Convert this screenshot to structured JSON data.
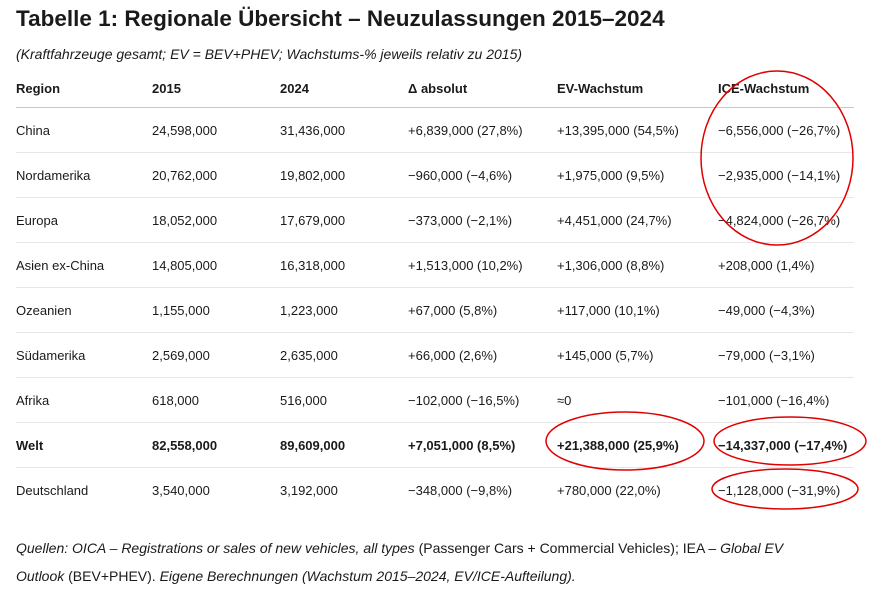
{
  "title": "Tabelle 1: Regionale Übersicht – Neuzulassungen 2015–2024",
  "subtitle": "(Kraftfahrzeuge gesamt; EV = BEV+PHEV; Wachstums-% jeweils relativ zu 2015)",
  "table": {
    "headers": [
      "Region",
      "2015",
      "2024",
      "Δ absolut",
      "EV-Wachstum",
      "ICE-Wachstum"
    ],
    "rows": [
      [
        "China",
        "24,598,000",
        "31,436,000",
        "+6,839,000 (27,8%)",
        "+13,395,000 (54,5%)",
        "−6,556,000 (−26,7%)"
      ],
      [
        "Nordamerika",
        "20,762,000",
        "19,802,000",
        "−960,000 (−4,6%)",
        "+1,975,000 (9,5%)",
        "−2,935,000 (−14,1%)"
      ],
      [
        "Europa",
        "18,052,000",
        "17,679,000",
        "−373,000 (−2,1%)",
        "+4,451,000 (24,7%)",
        "−4,824,000 (−26,7%)"
      ],
      [
        "Asien ex-China",
        "14,805,000",
        "16,318,000",
        "+1,513,000 (10,2%)",
        "+1,306,000 (8,8%)",
        "+208,000 (1,4%)"
      ],
      [
        "Ozeanien",
        "1,155,000",
        "1,223,000",
        "+67,000 (5,8%)",
        "+117,000 (10,1%)",
        "−49,000 (−4,3%)"
      ],
      [
        "Südamerika",
        "2,569,000",
        "2,635,000",
        "+66,000 (2,6%)",
        "+145,000 (5,7%)",
        "−79,000 (−3,1%)"
      ],
      [
        "Afrika",
        "618,000",
        "516,000",
        "−102,000 (−16,5%)",
        "≈0",
        "−101,000 (−16,4%)"
      ],
      [
        "Welt",
        "82,558,000",
        "89,609,000",
        "+7,051,000 (8,5%)",
        "+21,388,000 (25,9%)",
        "−14,337,000 (−17,4%)"
      ],
      [
        "Deutschland",
        "3,540,000",
        "3,192,000",
        "−348,000 (−9,8%)",
        "+780,000 (22,0%)",
        "−1,128,000 (−31,9%)"
      ]
    ]
  },
  "sources": {
    "label": "Quellen:",
    "oica": "OICA – Registrations or sales of new vehicles, all types",
    "oica_note": "(Passenger Cars + Commercial Vehicles); IEA –",
    "iea": "Global EV Outlook",
    "iea_note": "(BEV+PHEV).",
    "own": "Eigene Berechnungen (Wachstum 2015–2024, EV/ICE-Aufteilung)."
  },
  "annotation_color": "#e00000"
}
